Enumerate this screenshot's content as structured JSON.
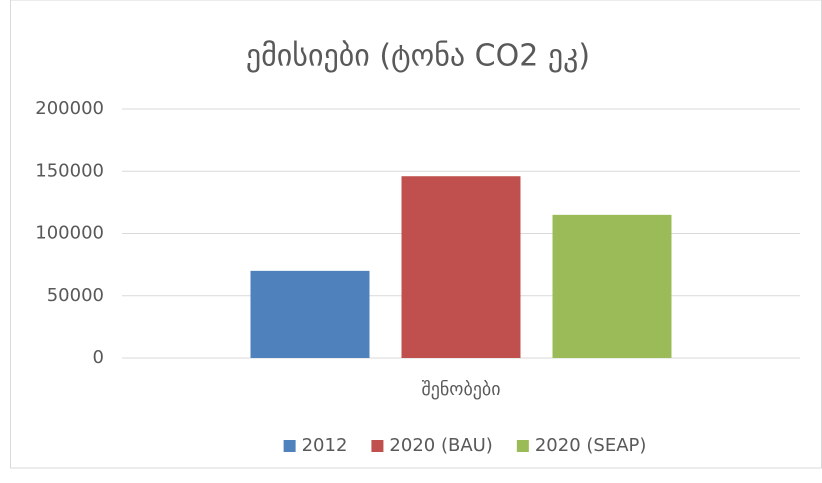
{
  "chart_data": {
    "type": "bar",
    "title": "ემისიები (ტონა CO2 ეკ)",
    "categories": [
      "შენობები"
    ],
    "series": [
      {
        "name": "2012",
        "color": "#4f81bd",
        "values": [
          70000
        ]
      },
      {
        "name": "2020 (BAU)",
        "color": "#c0504d",
        "values": [
          146000
        ]
      },
      {
        "name": "2020 (SEAP)",
        "color": "#9bbb59",
        "values": [
          115000
        ]
      }
    ],
    "ylim": [
      0,
      200000
    ],
    "yticks": [
      0,
      50000,
      100000,
      150000,
      200000
    ],
    "grid": true,
    "legend": "bottom"
  }
}
